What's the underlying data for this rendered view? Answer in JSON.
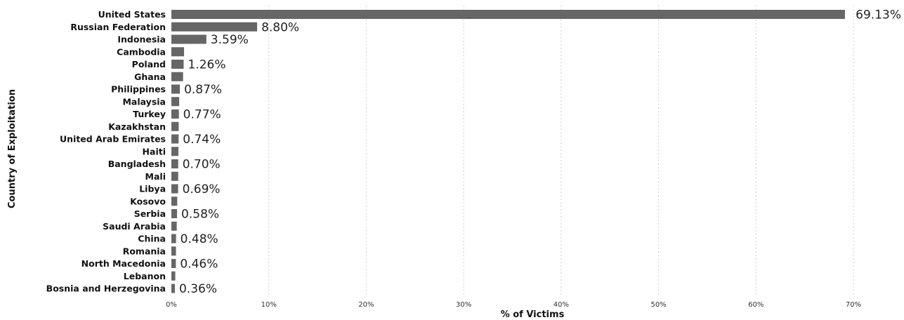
{
  "chart_data": {
    "type": "bar",
    "orientation": "horizontal",
    "xlabel": "% of Victims",
    "ylabel": "Country of Exploitation",
    "xlim": [
      0,
      70
    ],
    "x_ticks": [
      "0%",
      "10%",
      "20%",
      "30%",
      "40%",
      "50%",
      "60%",
      "70%"
    ],
    "grid": "vertical-dotted",
    "bar_color": "#666666",
    "categories": [
      "United States",
      "Russian Federation",
      "Indonesia",
      "Cambodia",
      "Poland",
      "Ghana",
      "Philippines",
      "Malaysia",
      "Turkey",
      "Kazakhstan",
      "United Arab Emirates",
      "Haiti",
      "Bangladesh",
      "Mali",
      "Libya",
      "Kosovo",
      "Serbia",
      "Saudi Arabia",
      "China",
      "Romania",
      "North Macedonia",
      "Lebanon",
      "Bosnia and Herzegovina"
    ],
    "values": [
      69.13,
      8.8,
      3.59,
      1.3,
      1.26,
      1.2,
      0.87,
      0.8,
      0.77,
      0.75,
      0.74,
      0.72,
      0.7,
      0.7,
      0.69,
      0.6,
      0.58,
      0.55,
      0.48,
      0.47,
      0.46,
      0.4,
      0.36
    ],
    "data_labels": [
      "69.13%",
      "8.80%",
      "3.59%",
      null,
      "1.26%",
      null,
      "0.87%",
      null,
      "0.77%",
      null,
      "0.74%",
      null,
      "0.70%",
      null,
      "0.69%",
      null,
      "0.58%",
      null,
      "0.48%",
      null,
      "0.46%",
      null,
      "0.36%"
    ]
  }
}
